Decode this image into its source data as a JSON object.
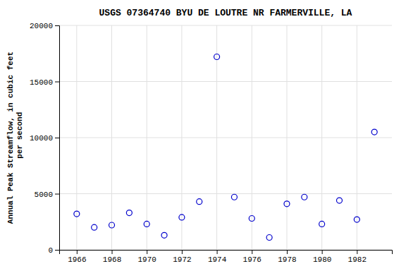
{
  "chart_data": {
    "type": "scatter",
    "title": "USGS 07364740 BYU DE LOUTRE NR FARMERVILLE, LA",
    "ylabel": "Annual Peak Streamflow, in cubic feet\n per second",
    "x": [
      1966,
      1967,
      1968,
      1969,
      1970,
      1971,
      1972,
      1973,
      1974,
      1975,
      1976,
      1977,
      1978,
      1979,
      1980,
      1981,
      1982,
      1983
    ],
    "values": [
      3200,
      2000,
      2200,
      3300,
      2300,
      1300,
      2900,
      4300,
      17200,
      4700,
      2800,
      1100,
      4100,
      4700,
      2300,
      4400,
      2700,
      10500
    ],
    "color": "#0000cc",
    "marker": "circle",
    "xlim": [
      1965.0,
      1984.0
    ],
    "ylim": [
      0,
      20000
    ],
    "xticks": [
      1966,
      1968,
      1970,
      1972,
      1974,
      1976,
      1978,
      1980,
      1982
    ],
    "yticks": [
      0,
      5000,
      10000,
      15000,
      20000
    ],
    "grid": true
  }
}
